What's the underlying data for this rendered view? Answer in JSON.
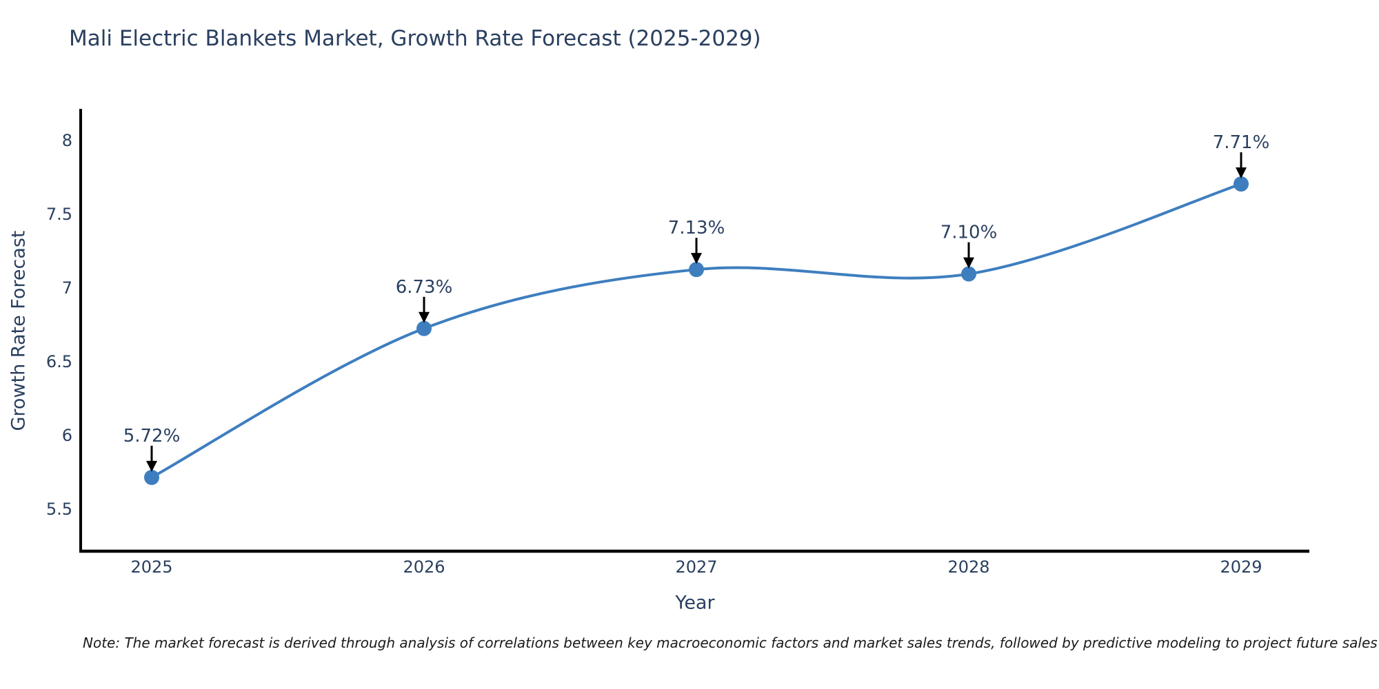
{
  "title": "Mali Electric Blankets Market, Growth Rate Forecast (2025-2029)",
  "note": "Note: The market forecast is derived through analysis of correlations between key macroeconomic factors and market sales trends, followed by predictive modeling to project future sales",
  "colors": {
    "accent": "#3E7EBF",
    "text": "#2a3f5f",
    "axis": "#000000",
    "arrow": "#000000",
    "background": "#ffffff"
  },
  "chart_data": {
    "type": "line",
    "title": "Mali Electric Blankets Market, Growth Rate Forecast (2025-2029)",
    "xlabel": "Year",
    "ylabel": "Growth Rate Forecast",
    "x": [
      2025,
      2026,
      2027,
      2028,
      2029
    ],
    "values": [
      5.72,
      6.73,
      7.13,
      7.1,
      7.71
    ],
    "labels": [
      "5.72%",
      "6.73%",
      "7.13%",
      "7.10%",
      "7.71%"
    ],
    "xticks": [
      "2025",
      "2026",
      "2027",
      "2028",
      "2029"
    ],
    "yticks": [
      "5.5",
      "6",
      "6.5",
      "7",
      "7.5",
      "8"
    ],
    "ylim": [
      5.22,
      8.21
    ],
    "xlim": [
      2024.74,
      2029.25
    ],
    "grid": false,
    "legend": "none",
    "line_shape": "spline",
    "marker": "circle",
    "annotation_arrows": true
  }
}
